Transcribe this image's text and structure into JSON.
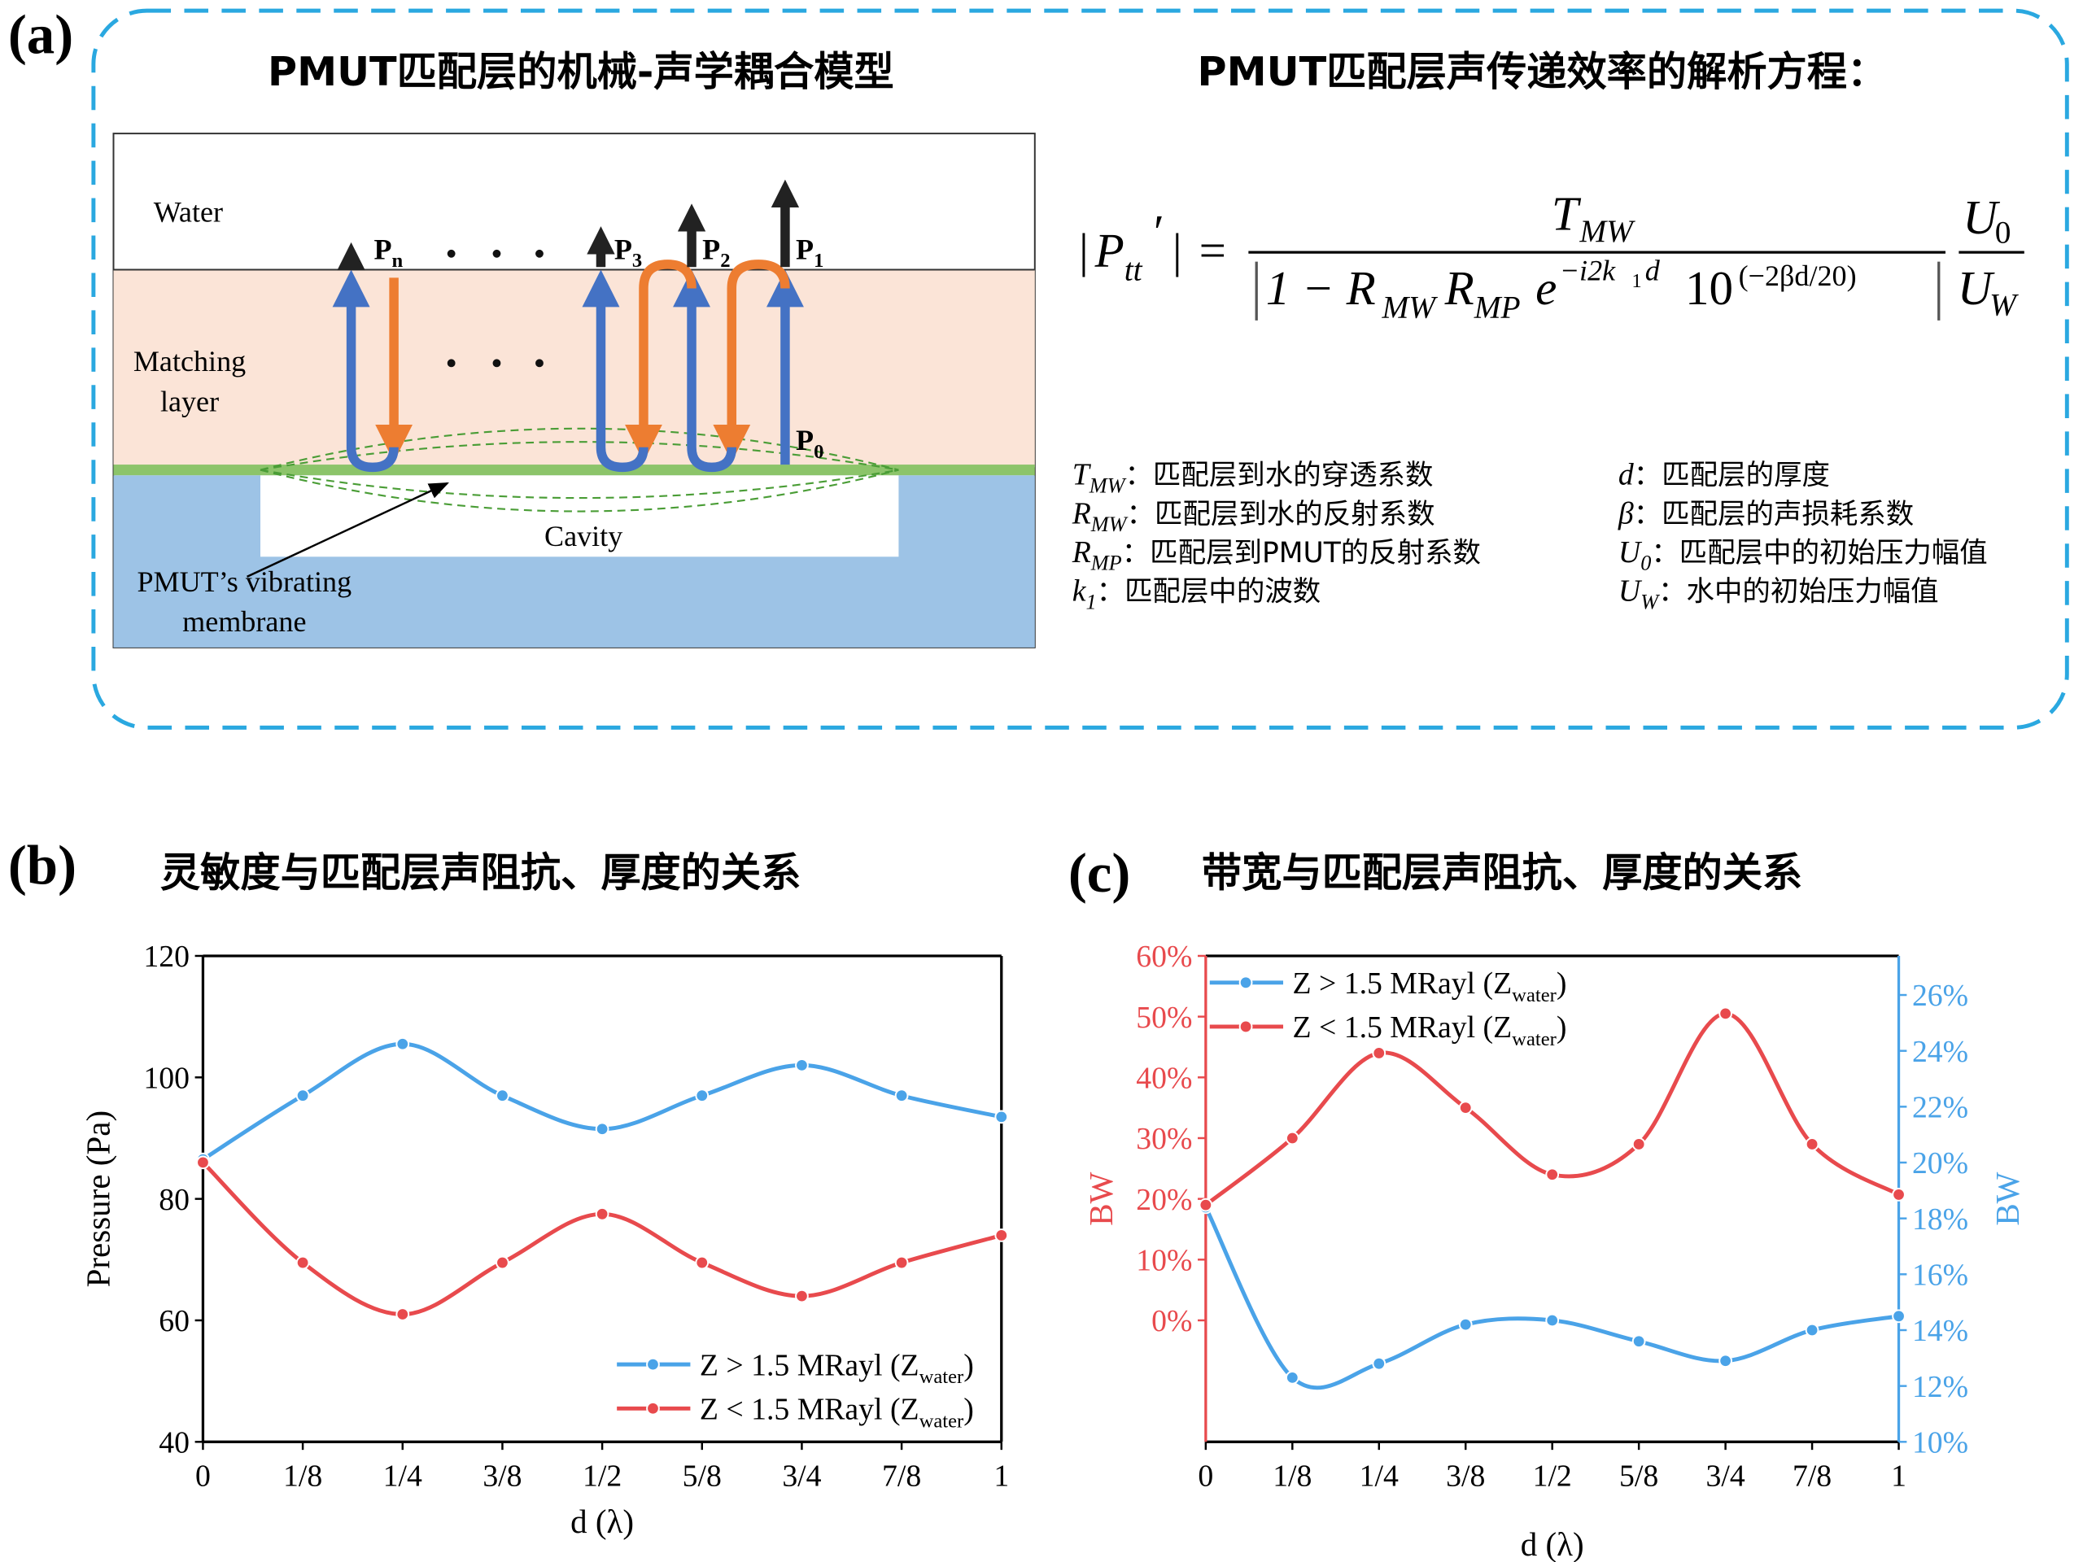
{
  "panel_labels": [
    "(a)",
    "(b)",
    "(c)"
  ],
  "diagram": {
    "title": "PMUT匹配层的机械-声学耦合模型",
    "water": "Water",
    "matching": [
      "Matching",
      "layer"
    ],
    "cavity": "Cavity",
    "membrane": [
      "PMUT’s vibrating",
      "membrane"
    ],
    "labels": [
      {
        "text": "P",
        "sub": "n"
      },
      {
        "text": "P",
        "sub": "3"
      },
      {
        "text": "P",
        "sub": "2"
      },
      {
        "text": "P",
        "sub": "1"
      },
      {
        "text": "P",
        "sub": "0"
      }
    ]
  },
  "equation": {
    "title": "PMUT匹配层声传递效率的解析方程：",
    "tokens": [
      "|",
      "P",
      "tt",
      "′",
      "|",
      "=",
      "T",
      "MW",
      "1 − R",
      "MW",
      "R",
      "MP",
      "e",
      "−i2k",
      "1",
      "d",
      "10",
      "(−2βd/20)",
      "U",
      "0",
      "U",
      "W"
    ],
    "symbols": [
      {
        "symbol": "T",
        "sub": "MW",
        "desc": "：匹配层到水的穿透系数"
      },
      {
        "symbol": "R",
        "sub": "MW",
        "desc": "：匹配层到水的反射系数"
      },
      {
        "symbol": "R",
        "sub": "MP",
        "desc": "：匹配层到PMUT的反射系数"
      },
      {
        "symbol": "k",
        "sub": "1",
        "desc": "：匹配层中的波数"
      },
      {
        "symbol": "d",
        "desc": "：匹配层的厚度"
      },
      {
        "symbol": "β",
        "desc": "：匹配层的声损耗系数"
      },
      {
        "symbol": "U",
        "sub": "0",
        "desc": "：匹配层中的初始压力幅值"
      },
      {
        "symbol": "U",
        "sub": "W",
        "desc": "：水中的初始压力幅值"
      }
    ]
  },
  "chart_data": [
    {
      "type": "line",
      "title": "灵敏度与匹配层声阻抗、厚度的关系",
      "xlabel": "d (λ)",
      "ylabel": "Pressure (Pa)",
      "x": [
        0,
        0.125,
        0.25,
        0.375,
        0.5,
        0.625,
        0.75,
        0.875,
        1
      ],
      "xlim": [
        0,
        1
      ],
      "xticks": [
        0,
        {
          "value": 0.125,
          "label": "1/8"
        },
        {
          "value": 0.25,
          "label": "1/4"
        },
        {
          "value": 0.375,
          "label": "3/8"
        },
        {
          "value": 0.5,
          "label": "1/2"
        },
        {
          "value": 0.625,
          "label": "5/8"
        },
        {
          "value": 0.75,
          "label": "3/4"
        },
        {
          "value": 0.875,
          "label": "7/8"
        },
        1
      ],
      "ylim": [
        40,
        120
      ],
      "yticks": [
        40,
        60,
        80,
        100,
        120
      ],
      "legend": "lower right",
      "series": [
        {
          "name": "Z > 1.5 MRayl (Zwater)",
          "color": "#4aa3e8",
          "values": [
            86.5,
            97,
            105.5,
            97,
            91.5,
            97,
            102,
            97,
            93.5
          ]
        },
        {
          "name": "Z < 1.5 MRayl (Zwater)",
          "color": "#e84a4d",
          "values": [
            86,
            69.5,
            61,
            69.5,
            77.5,
            69.5,
            64,
            69.5,
            74
          ]
        }
      ]
    },
    {
      "type": "line",
      "title": "带宽与匹配层声阻抗、厚度的关系",
      "xlabel": "d (λ)",
      "ylabel": "BW",
      "y2label": "BW",
      "ycolor": "#e84a4d",
      "y2color": "#4aa3e8",
      "x": [
        0,
        0.125,
        0.25,
        0.375,
        0.5,
        0.625,
        0.75,
        0.875,
        1
      ],
      "xlim": [
        0,
        1
      ],
      "xticks": [
        0,
        {
          "value": 0.125,
          "label": "1/8"
        },
        {
          "value": 0.25,
          "label": "1/4"
        },
        {
          "value": 0.375,
          "label": "3/8"
        },
        {
          "value": 0.5,
          "label": "1/2"
        },
        {
          "value": 0.625,
          "label": "5/8"
        },
        {
          "value": 0.75,
          "label": "3/4"
        },
        {
          "value": 0.875,
          "label": "7/8"
        },
        1
      ],
      "ylim": [
        -20,
        60
      ],
      "yticks": [
        {
          "value": 0,
          "label": "0%"
        },
        {
          "value": 10,
          "label": "10%"
        },
        {
          "value": 20,
          "label": "20%"
        },
        {
          "value": 30,
          "label": "30%"
        },
        {
          "value": 40,
          "label": "40%"
        },
        {
          "value": 50,
          "label": "50%"
        },
        {
          "value": 60,
          "label": "60%"
        }
      ],
      "y2lim": [
        10,
        27.4
      ],
      "y2ticks": [
        {
          "value": 10,
          "label": "10%"
        },
        {
          "value": 12,
          "label": "12%"
        },
        {
          "value": 14,
          "label": "14%"
        },
        {
          "value": 16,
          "label": "16%"
        },
        {
          "value": 18,
          "label": "18%"
        },
        {
          "value": 20,
          "label": "20%"
        },
        {
          "value": 22,
          "label": "22%"
        },
        {
          "value": 24,
          "label": "24%"
        },
        {
          "value": 26,
          "label": "26%"
        }
      ],
      "legend": "upper left",
      "series": [
        {
          "name": "Z > 1.5 MRayl (Zwater)",
          "color": "#4aa3e8",
          "axis": "y2",
          "values": [
            18.4,
            12.3,
            12.8,
            14.2,
            14.35,
            13.6,
            12.9,
            14,
            14.5
          ]
        },
        {
          "name": "Z < 1.5 MRayl (Zwater)",
          "color": "#e84a4d",
          "values": [
            19,
            30,
            44,
            35,
            24,
            29,
            50.5,
            29,
            20.7
          ]
        }
      ]
    }
  ]
}
